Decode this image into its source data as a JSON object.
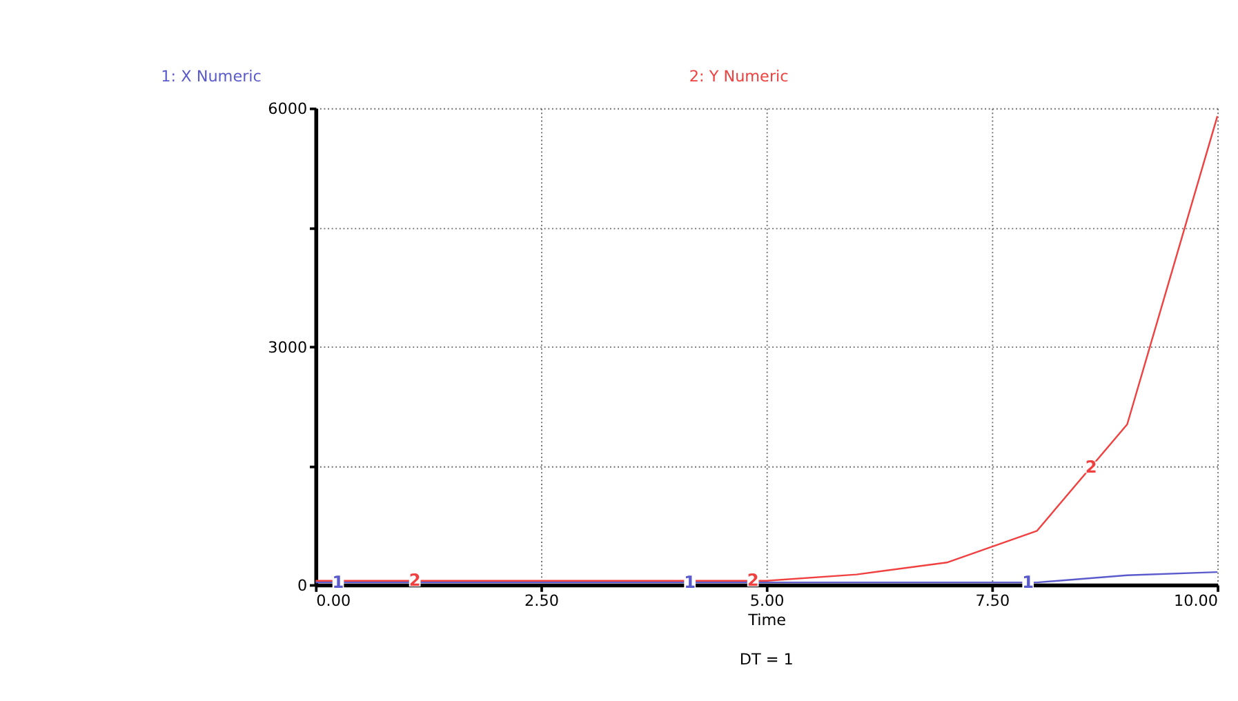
{
  "chart_data": {
    "type": "line",
    "xlabel": "Time",
    "x": [
      0,
      1,
      2,
      3,
      4,
      5,
      6,
      7,
      8,
      9,
      10
    ],
    "series": [
      {
        "name": "1: X Numeric",
        "color": "#5a5acd",
        "values": [
          30,
          30,
          30,
          30,
          30,
          30,
          30,
          30,
          30,
          120,
          160
        ]
      },
      {
        "name": "2: Y Numeric",
        "color": "#f04040",
        "values": [
          50,
          50,
          50,
          50,
          50,
          50,
          130,
          280,
          680,
          2020,
          5900
        ]
      }
    ],
    "xlim": [
      0,
      10
    ],
    "xticks": [
      {
        "value": 0,
        "label": "0.00"
      },
      {
        "value": 2.5,
        "label": "2.50"
      },
      {
        "value": 5,
        "label": "5.00"
      },
      {
        "value": 7.5,
        "label": "7.50"
      },
      {
        "value": 10,
        "label": "10.00"
      }
    ],
    "ylim": [
      0,
      6000
    ],
    "yticks": [
      0,
      {
        "value": 1500,
        "label": null
      },
      3000,
      {
        "value": 4500,
        "label": null
      },
      6000
    ],
    "grid": true,
    "legend": "top",
    "annotations": [
      {
        "text": "1",
        "x": 0.25,
        "y": 30
      },
      {
        "text": "2",
        "x": 1.1,
        "y": 50
      },
      {
        "text": "1",
        "x": 4.15,
        "y": 30
      },
      {
        "text": "2",
        "x": 4.85,
        "y": 50
      },
      {
        "text": "1",
        "x": 7.9,
        "y": 30
      },
      {
        "text": "2",
        "x": 8.6,
        "y": 1480
      },
      "DT = 1"
    ]
  }
}
